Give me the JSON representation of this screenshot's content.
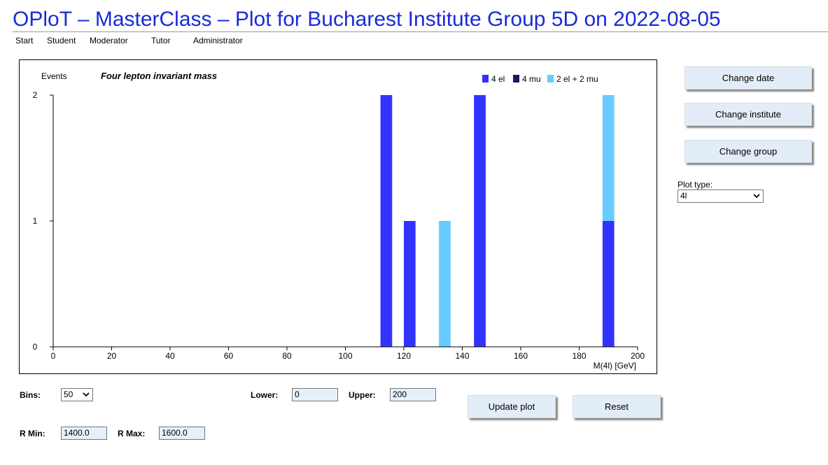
{
  "page": {
    "title": "OPloT – MasterClass – Plot for Bucharest Institute Group 5D on 2022-08-05"
  },
  "nav": {
    "items": [
      "Start",
      "Student",
      "Moderator",
      "Tutor",
      "Administrator"
    ]
  },
  "sidebar": {
    "change_date": "Change date",
    "change_institute": "Change institute",
    "change_group": "Change group",
    "plot_type_label": "Plot type:",
    "plot_type_value": "4l"
  },
  "controls": {
    "bins_label": "Bins:",
    "bins_value": "50",
    "lower_label": "Lower:",
    "lower_value": "0",
    "upper_label": "Upper:",
    "upper_value": "200",
    "update_plot": "Update plot",
    "reset": "Reset",
    "rmin_label": "R Min:",
    "rmin_value": "1400.0",
    "rmax_label": "R Max:",
    "rmax_value": "1600.0"
  },
  "colors": {
    "title": "#1a2bd6",
    "series_4el": "#3333ff",
    "series_4mu": "#1a1a66",
    "series_2el2mu": "#66ccff"
  },
  "chart_data": {
    "type": "bar",
    "stacked": true,
    "title": "Four lepton invariant mass",
    "ylabel": "Events",
    "xlabel": "M(4l) [GeV]",
    "xlim": [
      0,
      200
    ],
    "ylim": [
      0,
      2
    ],
    "xticks": [
      0,
      20,
      40,
      60,
      80,
      100,
      120,
      140,
      160,
      180,
      200
    ],
    "yticks": [
      0,
      1,
      2
    ],
    "bin_width": 4,
    "legend_position": "top-right",
    "series": [
      {
        "name": "4 el",
        "color": "#3333ff",
        "bins": [
          {
            "start": 112,
            "end": 116,
            "value": 2
          },
          {
            "start": 120,
            "end": 124,
            "value": 1
          },
          {
            "start": 144,
            "end": 148,
            "value": 2
          },
          {
            "start": 188,
            "end": 192,
            "value": 1
          }
        ]
      },
      {
        "name": "4 mu",
        "color": "#1a1a66",
        "bins": []
      },
      {
        "name": "2 el + 2 mu",
        "color": "#66ccff",
        "bins": [
          {
            "start": 132,
            "end": 136,
            "value": 1
          },
          {
            "start": 188,
            "end": 192,
            "value": 1
          }
        ]
      }
    ]
  }
}
